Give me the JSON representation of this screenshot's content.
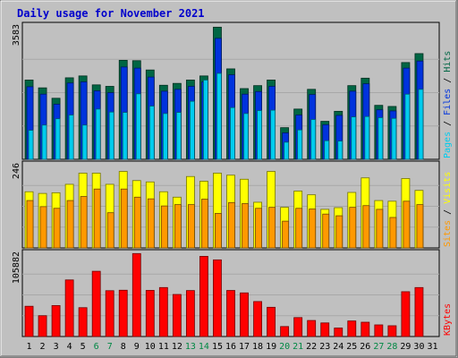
{
  "chart_data": {
    "type": "bar",
    "title": "Daily usage for November 2021",
    "categories": [
      "1",
      "2",
      "3",
      "4",
      "5",
      "6",
      "7",
      "8",
      "9",
      "10",
      "11",
      "12",
      "13",
      "14",
      "15",
      "16",
      "17",
      "18",
      "19",
      "20",
      "21",
      "22",
      "23",
      "24",
      "25",
      "26",
      "27",
      "28",
      "29",
      "30",
      "31"
    ],
    "weekend_days": [
      "6",
      "7",
      "13",
      "14",
      "20",
      "21",
      "27",
      "28"
    ],
    "colors": {
      "hits": "#006644",
      "files": "#0033dd",
      "pages": "#00ccee",
      "visits": "#ffff00",
      "sites": "#ff9900",
      "kbytes": "#ff0000",
      "weekday_tick": "#000000",
      "weekend_tick": "#008844",
      "background": "#c0c0c0"
    },
    "panels": [
      {
        "ymax_label": "3583",
        "ylim": [
          0,
          3583
        ],
        "legend": [
          "Pages",
          "Files",
          "Hits"
        ],
        "series": [
          {
            "name": "Hits",
            "values": [
              2130,
              1920,
              1640,
              2190,
              2240,
              2000,
              1960,
              2660,
              2650,
              2400,
              1990,
              2040,
              2130,
              2240,
              3550,
              2430,
              1900,
              1980,
              2130,
              850,
              1350,
              1880,
              1020,
              1290,
              1980,
              2180,
              1450,
              1420,
              2600,
              2840,
              null
            ]
          },
          {
            "name": "Files",
            "values": [
              1950,
              1750,
              1480,
              2050,
              2080,
              1840,
              1790,
              2480,
              2450,
              2210,
              1830,
              1880,
              1960,
              2080,
              3250,
              2270,
              1750,
              1820,
              1960,
              710,
              1190,
              1740,
              930,
              1180,
              1830,
              2030,
              1330,
              1300,
              2450,
              2640,
              null
            ]
          },
          {
            "name": "Pages",
            "values": [
              780,
              920,
              1090,
              1190,
              920,
              1350,
              1270,
              1260,
              1760,
              1430,
              1230,
              1260,
              1560,
              2130,
              2310,
              1390,
              1230,
              1310,
              1320,
              460,
              790,
              1070,
              500,
              490,
              1140,
              1150,
              1120,
              1100,
              1750,
              1880,
              null
            ]
          }
        ]
      },
      {
        "ymax_label": "246",
        "ylim": [
          0,
          246
        ],
        "legend": [
          "Sites",
          "Visits"
        ],
        "series": [
          {
            "name": "Visits",
            "values": [
              166,
              161,
              163,
              188,
              221,
              221,
              188,
              226,
              199,
              195,
              166,
              150,
              211,
              197,
              221,
              215,
              203,
              135,
              226,
              120,
              168,
              157,
              114,
              119,
              164,
              207,
              140,
              138,
              205,
              170,
              null
            ]
          },
          {
            "name": "Sites",
            "values": [
              140,
              122,
              117,
              140,
              152,
              174,
              104,
              174,
              150,
              145,
              124,
              128,
              128,
              144,
              102,
              134,
              131,
              117,
              120,
              79,
              117,
              115,
              100,
              95,
              120,
              125,
              114,
              90,
              138,
              128,
              null
            ]
          }
        ]
      },
      {
        "ymax_label": "105882",
        "ylim": [
          0,
          105882
        ],
        "legend": [
          "KBytes"
        ],
        "series": [
          {
            "name": "KBytes",
            "values": [
              38500,
              26500,
              39400,
              72000,
              36700,
              83000,
              58300,
              58900,
              105500,
              58700,
              62300,
              53500,
              58500,
              102000,
              97500,
              58600,
              55500,
              44500,
              37200,
              12700,
              24100,
              20400,
              17300,
              10800,
              19800,
              18200,
              14800,
              13700,
              57000,
              62300,
              null
            ]
          }
        ]
      }
    ]
  }
}
